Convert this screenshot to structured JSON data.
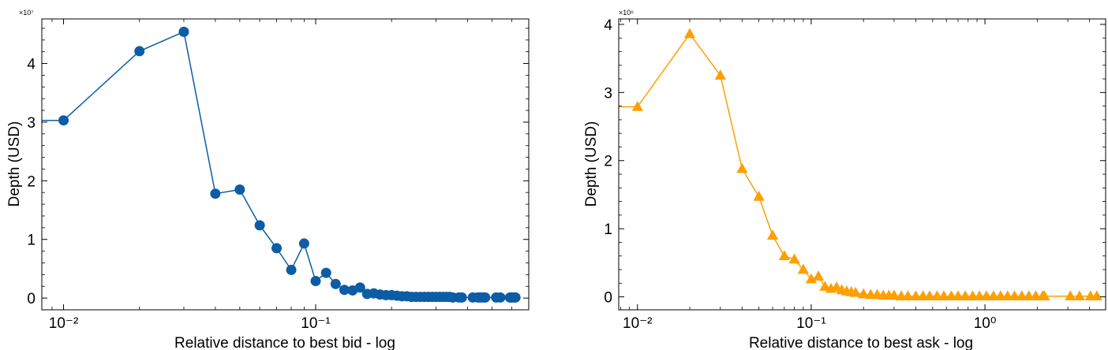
{
  "chart_data": [
    {
      "type": "line",
      "xscale": "log",
      "xlim": [
        0.0082,
        0.7
      ],
      "ylim": [
        -0.2,
        4.76
      ],
      "x_ticks": [
        0.01,
        0.1
      ],
      "x_tick_labels": [
        "10⁻²",
        "10⁻¹"
      ],
      "y_ticks": [
        0,
        1,
        2,
        3,
        4
      ],
      "y_tick_labels": [
        "0",
        "1",
        "2",
        "3",
        "4"
      ],
      "y_offset_label": "×10⁷",
      "xlabel": "Relative distance to best bid - log",
      "ylabel": "Depth (USD)",
      "grid": false,
      "color": "#0C5DA5",
      "marker": "circle",
      "series": [
        {
          "x": [
            0.0082,
            0.01,
            0.02,
            0.03,
            0.04,
            0.05,
            0.06,
            0.07,
            0.08,
            0.09,
            0.1,
            0.11,
            0.12,
            0.13,
            0.14,
            0.15,
            0.16,
            0.17,
            0.18,
            0.19,
            0.2,
            0.21,
            0.22,
            0.23,
            0.24,
            0.25,
            0.26,
            0.27,
            0.28,
            0.29,
            0.3,
            0.31,
            0.32,
            0.33,
            0.34,
            0.35,
            0.37,
            0.38,
            0.42,
            0.44,
            0.45,
            0.46,
            0.47,
            0.52,
            0.54,
            0.59,
            0.6,
            0.61,
            0.62
          ],
          "y": [
            3.03,
            3.03,
            4.21,
            4.54,
            1.78,
            1.85,
            1.24,
            0.85,
            0.48,
            0.93,
            0.29,
            0.43,
            0.24,
            0.14,
            0.13,
            0.18,
            0.07,
            0.08,
            0.06,
            0.05,
            0.05,
            0.04,
            0.03,
            0.03,
            0.02,
            0.02,
            0.02,
            0.02,
            0.02,
            0.02,
            0.02,
            0.02,
            0.02,
            0.02,
            0.02,
            0.01,
            0.01,
            0.01,
            0.01,
            0.01,
            0.01,
            0.01,
            0.01,
            0.01,
            0.01,
            0.01,
            0.01,
            0.01,
            0.01
          ]
        }
      ]
    },
    {
      "type": "line",
      "xscale": "log",
      "xlim": [
        0.0078,
        4.95
      ],
      "ylim": [
        -0.19,
        4.08
      ],
      "x_ticks": [
        0.01,
        0.1,
        1
      ],
      "x_tick_labels": [
        "10⁻²",
        "10⁻¹",
        "10⁰"
      ],
      "y_ticks": [
        0,
        1,
        2,
        3,
        4
      ],
      "y_tick_labels": [
        "0",
        "1",
        "2",
        "3",
        "4"
      ],
      "y_offset_label": "×10⁶",
      "xlabel": "Relative distance to best ask - log",
      "ylabel": "Depth (USD)",
      "grid": false,
      "color": "#FF9F00",
      "marker": "triangle",
      "series": [
        {
          "x": [
            0.0078,
            0.01,
            0.02,
            0.03,
            0.04,
            0.05,
            0.06,
            0.07,
            0.08,
            0.09,
            0.1,
            0.11,
            0.12,
            0.13,
            0.14,
            0.15,
            0.16,
            0.17,
            0.18,
            0.2,
            0.22,
            0.24,
            0.26,
            0.28,
            0.3,
            0.33,
            0.36,
            0.4,
            0.44,
            0.48,
            0.53,
            0.58,
            0.64,
            0.7,
            0.77,
            0.85,
            0.93,
            1.02,
            1.12,
            1.23,
            1.35,
            1.48,
            1.63,
            1.79,
            1.96,
            2.15,
            2.2,
            3.1,
            3.5,
            4.05,
            4.4
          ],
          "y": [
            2.79,
            2.79,
            3.86,
            3.25,
            1.88,
            1.47,
            0.9,
            0.6,
            0.55,
            0.4,
            0.26,
            0.3,
            0.15,
            0.12,
            0.14,
            0.1,
            0.08,
            0.07,
            0.06,
            0.04,
            0.03,
            0.03,
            0.02,
            0.02,
            0.02,
            0.01,
            0.01,
            0.01,
            0.01,
            0.01,
            0.01,
            0.01,
            0.01,
            0.01,
            0.01,
            0.01,
            0.01,
            0.01,
            0.01,
            0.01,
            0.01,
            0.01,
            0.01,
            0.01,
            0.01,
            0.01,
            0.01,
            0.01,
            0.01,
            0.01,
            0.01
          ]
        }
      ]
    }
  ]
}
